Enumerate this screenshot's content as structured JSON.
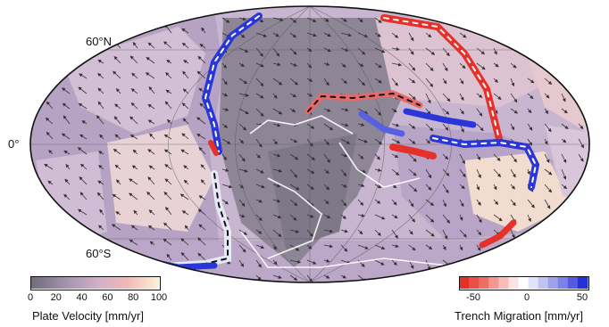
{
  "map": {
    "latitude_labels": {
      "north": "60°N",
      "equator": "0°",
      "south": "60°S"
    }
  },
  "legend_velocity": {
    "title": "Plate Velocity [mm/yr]",
    "ticks": [
      "0",
      "20",
      "40",
      "60",
      "80",
      "100"
    ],
    "colors": [
      "#6f6a78",
      "#a797b2",
      "#d6b1c8",
      "#f0b8b5",
      "#f6d6b5",
      "#fdf0d6"
    ]
  },
  "legend_trench": {
    "title": "Trench Migration [mm/yr]",
    "ticks": [
      "-50",
      "0",
      "50"
    ],
    "colors": [
      "#e5302a",
      "#f08a80",
      "#ffffff",
      "#9ea2ee",
      "#2430d8"
    ]
  }
}
